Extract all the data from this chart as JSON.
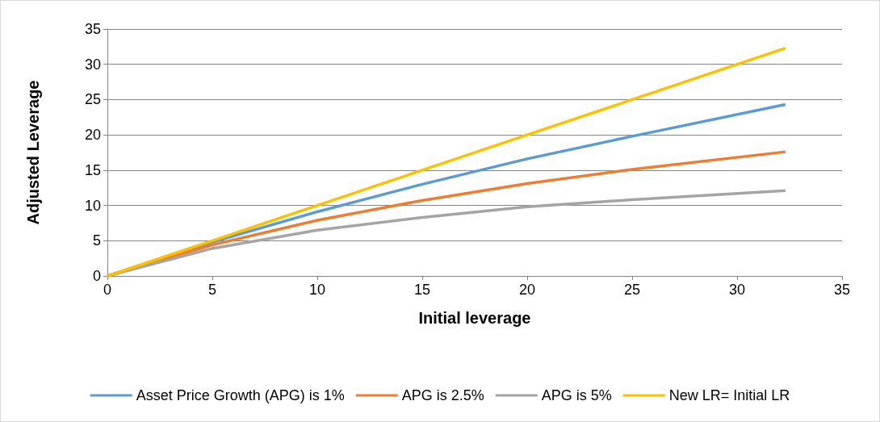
{
  "chart_data": {
    "type": "line",
    "xlabel": "Initial leverage",
    "ylabel": "Adjusted Leverage",
    "xlim": [
      0,
      35
    ],
    "xticks": [
      0,
      5,
      10,
      15,
      20,
      25,
      30,
      35
    ],
    "ylim": [
      0,
      35
    ],
    "yticks": [
      0,
      5,
      10,
      15,
      20,
      25,
      30,
      35
    ],
    "grid": "y",
    "legend": "bottom",
    "marker": "none",
    "line_style": "solid",
    "series": [
      {
        "name": "Asset Price Growth (APG) is 1%",
        "color": "#5b9bd5",
        "x": [
          0,
          5,
          10,
          15,
          20,
          25,
          32.3
        ],
        "values": [
          0,
          4.8,
          9.1,
          13,
          16.6,
          19.8,
          24.3
        ]
      },
      {
        "name": "APG is 2.5%",
        "color": "#ed7d31",
        "x": [
          0,
          5,
          10,
          15,
          20,
          25,
          32.3
        ],
        "values": [
          0,
          4.4,
          7.9,
          10.7,
          13.1,
          15.1,
          17.6
        ]
      },
      {
        "name": "APG is 5%",
        "color": "#a5a5a5",
        "x": [
          0,
          5,
          10,
          15,
          20,
          25,
          32.3
        ],
        "values": [
          0,
          3.9,
          6.5,
          8.3,
          9.8,
          10.8,
          12.1
        ]
      },
      {
        "name": "New LR= Initial LR",
        "color": "#ffc000",
        "x": [
          0,
          5,
          10,
          15,
          20,
          25,
          32.3
        ],
        "values": [
          0,
          5,
          10,
          15,
          20,
          25,
          32.3
        ]
      }
    ]
  }
}
